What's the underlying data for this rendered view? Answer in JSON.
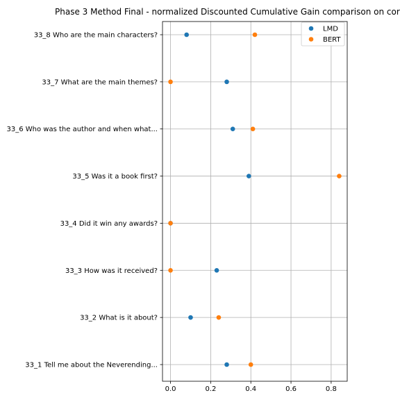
{
  "chart_data": {
    "type": "scatter",
    "title": "Phase 3 Method Final - normalized Discounted Cumulative Gain comparison on cor",
    "xlabel": "",
    "ylabel": "",
    "xlim": [
      -0.04,
      0.88
    ],
    "x_ticks": [
      "0.0",
      "0.2",
      "0.4",
      "0.6",
      "0.8"
    ],
    "x_tick_values": [
      0.0,
      0.2,
      0.4,
      0.6,
      0.8
    ],
    "categories": [
      "33_1 Tell me about the Neverending...",
      "33_2 What is it about?",
      "33_3 How was it received?",
      "33_4 Did it win any awards?",
      "33_5 Was it a book first?",
      "33_6 Who was the author and when what...",
      "33_7 What are the main themes?",
      "33_8 Who are the main characters?"
    ],
    "series": [
      {
        "name": "LMD",
        "color": "#1f77b4",
        "values": [
          0.28,
          0.1,
          0.23,
          0.0,
          0.39,
          0.31,
          0.28,
          0.08
        ]
      },
      {
        "name": "BERT",
        "color": "#ff7f0e",
        "values": [
          0.4,
          0.24,
          0.0,
          0.0,
          0.84,
          0.41,
          0.0,
          0.42
        ]
      }
    ],
    "grid": true,
    "legend_position": "top-right"
  }
}
